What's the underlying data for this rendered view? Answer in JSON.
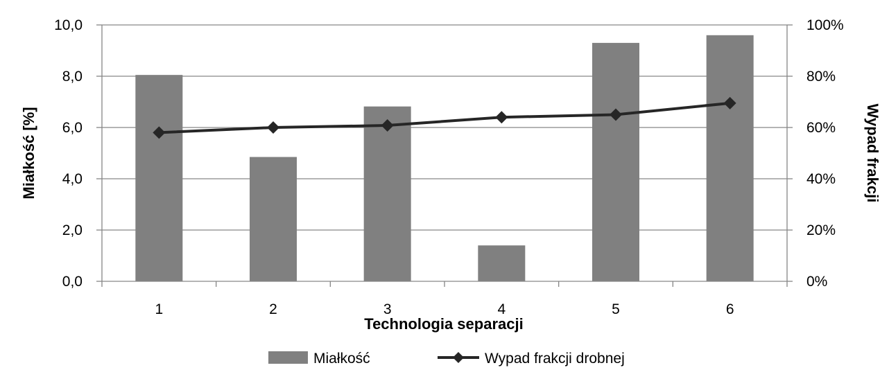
{
  "chart_data": {
    "type": "bar",
    "categories": [
      "1",
      "2",
      "3",
      "4",
      "5",
      "6"
    ],
    "series": [
      {
        "name": "Miałkość",
        "type": "bar",
        "axis": "left",
        "color": "#808080",
        "values": [
          8.05,
          4.85,
          6.82,
          1.4,
          9.3,
          9.6
        ]
      },
      {
        "name": "Wypad frakcji drobnej",
        "type": "line",
        "axis": "right",
        "marker": "diamond",
        "color": "#262626",
        "values": [
          58,
          60,
          60.8,
          64,
          65,
          69.5
        ]
      }
    ],
    "xlabel": "Technologia separacji",
    "ylabel": "Miałkość [%]",
    "ylabel_right": "Wypad frakcji",
    "ylim": [
      0,
      10
    ],
    "ylim_right": [
      0,
      100
    ],
    "yticks": [
      "0,0",
      "2,0",
      "4,0",
      "6,0",
      "8,0",
      "10,0"
    ],
    "yticks_right": [
      "0%",
      "20%",
      "40%",
      "60%",
      "80%",
      "100%"
    ],
    "grid": true,
    "legend_position": "bottom",
    "gridline_color": "#868686"
  }
}
